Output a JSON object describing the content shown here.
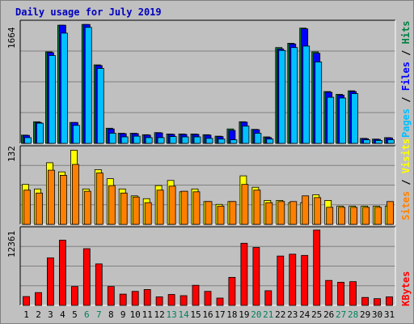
{
  "title": "Daily usage for July 2019",
  "panels": {
    "top": {
      "max_label": "1664",
      "legend": [
        {
          "text": "Pages",
          "color": "#00c0ff"
        },
        {
          "text": " / ",
          "color": "#000000"
        },
        {
          "text": "Files",
          "color": "#0000ff"
        },
        {
          "text": " / ",
          "color": "#000000"
        },
        {
          "text": "Hits",
          "color": "#008040"
        }
      ]
    },
    "middle": {
      "max_label": "132",
      "legend": [
        {
          "text": "Sites",
          "color": "#ff8000"
        },
        {
          "text": " / ",
          "color": "#000000"
        },
        {
          "text": "Visits",
          "color": "#ffff00"
        }
      ]
    },
    "bottom": {
      "max_label": "12361",
      "legend": [
        {
          "text": "KBytes",
          "color": "#ff0000"
        }
      ]
    }
  },
  "colors": {
    "hits": "#008040",
    "files": "#0000ff",
    "pages": "#00c0ff",
    "visits": "#ffff00",
    "sites": "#ff8000",
    "kbytes": "#ff0000",
    "weekday_label": "#000000",
    "weekend_label": "#00805c"
  },
  "chart_data": {
    "type": "bar",
    "title": "Daily usage for July 2019",
    "categories": [
      "1",
      "2",
      "3",
      "4",
      "5",
      "6",
      "7",
      "8",
      "9",
      "10",
      "11",
      "12",
      "13",
      "14",
      "15",
      "16",
      "17",
      "18",
      "19",
      "20",
      "21",
      "22",
      "23",
      "24",
      "25",
      "26",
      "27",
      "28",
      "29",
      "30",
      "31"
    ],
    "weekend_days": [
      "6",
      "7",
      "13",
      "14",
      "20",
      "21",
      "27",
      "28"
    ],
    "panels": [
      {
        "name": "Pages / Files / Hits",
        "ylim": [
          0,
          1664
        ],
        "max_label": "1664",
        "series": [
          {
            "name": "Hits",
            "color": "#008040",
            "values": [
              115,
              300,
              1270,
              1640,
              290,
              1650,
              1090,
              210,
              140,
              140,
              120,
              150,
              130,
              130,
              130,
              120,
              100,
              200,
              300,
              195,
              90,
              1330,
              1390,
              1600,
              1270,
              720,
              680,
              730,
              70,
              60,
              80
            ]
          },
          {
            "name": "Files",
            "color": "#0000ff",
            "values": [
              110,
              290,
              1260,
              1640,
              290,
              1650,
              1080,
              200,
              135,
              135,
              115,
              145,
              125,
              125,
              125,
              115,
              95,
              180,
              295,
              190,
              80,
              1310,
              1380,
              1590,
              1250,
              710,
              670,
              720,
              65,
              55,
              75
            ]
          },
          {
            "name": "Pages",
            "color": "#00c0ff",
            "values": [
              80,
              280,
              1220,
              1530,
              250,
              1610,
              1040,
              140,
              90,
              100,
              80,
              80,
              95,
              90,
              90,
              70,
              60,
              50,
              240,
              140,
              60,
              1290,
              1330,
              1350,
              1130,
              640,
              630,
              690,
              50,
              40,
              50
            ]
          }
        ]
      },
      {
        "name": "Sites / Visits",
        "ylim": [
          0,
          132
        ],
        "max_label": "132",
        "series": [
          {
            "name": "Visits",
            "color": "#ffff00",
            "values": [
              70,
              62,
              108,
              92,
              130,
              62,
              96,
              80,
              62,
              50,
              45,
              68,
              77,
              57,
              62,
              40,
              35,
              40,
              85,
              65,
              42,
              42,
              38,
              38,
              52,
              42,
              32,
              32,
              32,
              32,
              32
            ]
          },
          {
            "name": "Sites",
            "color": "#ff8000",
            "values": [
              60,
              55,
              95,
              86,
              105,
              58,
              90,
              68,
              55,
              48,
              38,
              60,
              67,
              58,
              57,
              40,
              32,
              40,
              70,
              60,
              38,
              40,
              40,
              50,
              47,
              30,
              30,
              30,
              30,
              30,
              40
            ]
          }
        ]
      },
      {
        "name": "KBytes",
        "ylim": [
          0,
          12361
        ],
        "max_label": "12361",
        "series": [
          {
            "name": "KBytes",
            "color": "#ff0000",
            "values": [
              1450,
              2100,
              7800,
              10700,
              3100,
              9300,
              6800,
              3100,
              1850,
              2300,
              2600,
              1400,
              1800,
              1600,
              3300,
              2300,
              1200,
              4600,
              10200,
              9500,
              2400,
              8100,
              8400,
              8200,
              12361,
              4100,
              3800,
              3900,
              1300,
              1100,
              1400
            ]
          }
        ]
      }
    ]
  }
}
